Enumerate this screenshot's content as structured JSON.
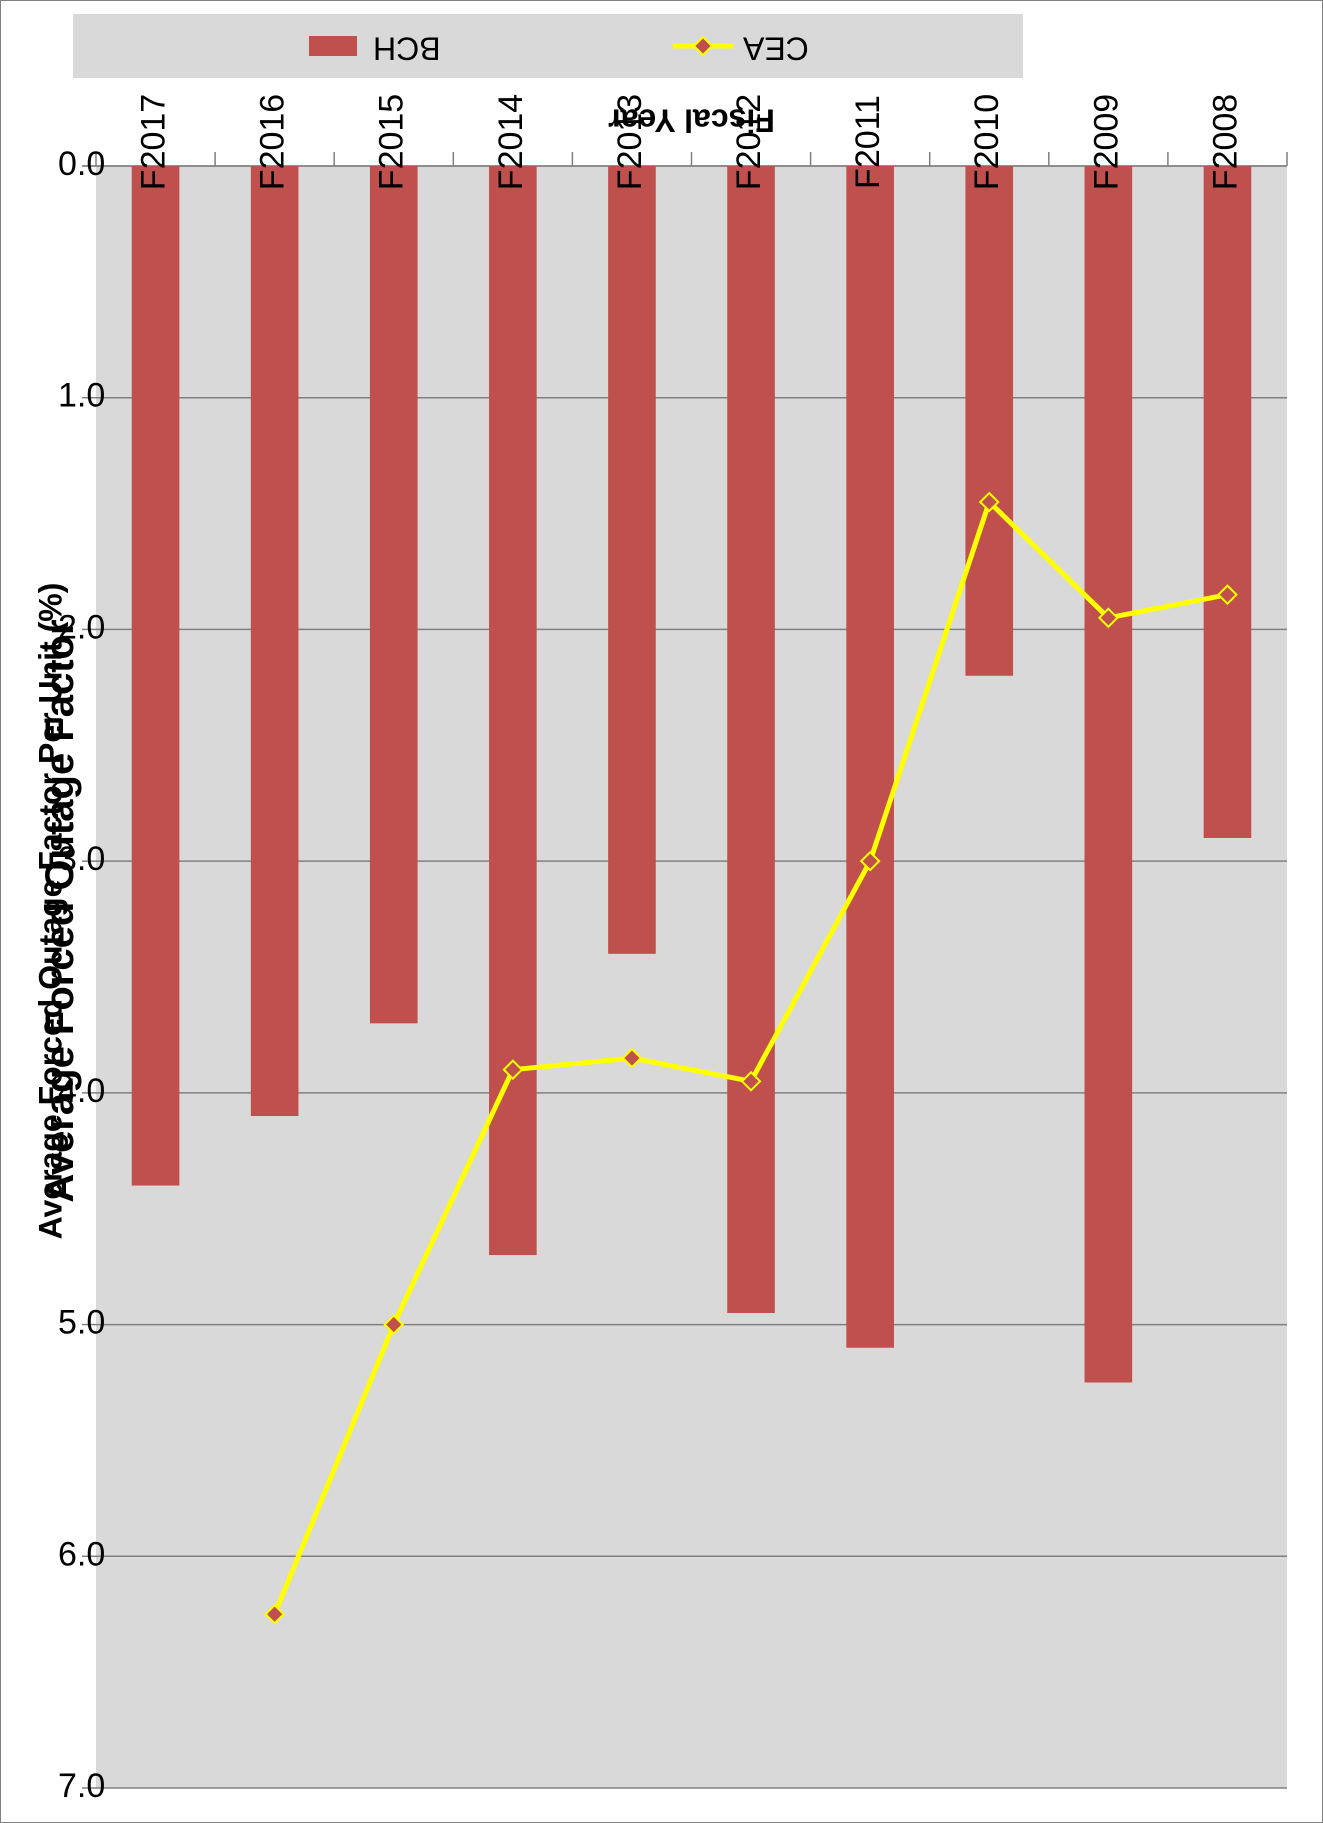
{
  "chart_data": {
    "type": "bar",
    "orientation": "rotated-90-clockwise",
    "title": "Average Forced Outage Factor",
    "xlabel": "Fiscal Year",
    "ylabel": "Average Forced Outage Factor Per Unit (%)",
    "categories": [
      "F2008",
      "F2009",
      "F2010",
      "F2011",
      "F2012",
      "F2013",
      "F2014",
      "F2015",
      "F2016",
      "F2017"
    ],
    "ylim": [
      0,
      7
    ],
    "yticks": [
      "0.0",
      "1.0",
      "2.0",
      "3.0",
      "4.0",
      "5.0",
      "6.0",
      "7.0"
    ],
    "grid": true,
    "legend_position": "bottom",
    "series": [
      {
        "name": "BCH",
        "kind": "bar",
        "color": "#C0504D",
        "values": [
          2.9,
          5.25,
          2.2,
          5.1,
          4.95,
          3.4,
          4.7,
          3.7,
          4.1,
          4.4
        ]
      },
      {
        "name": "CEA",
        "kind": "line",
        "color": "#FFFF00",
        "marker_color": "#C0504D",
        "values": [
          1.85,
          1.95,
          1.45,
          3.0,
          3.95,
          3.85,
          3.9,
          5.0,
          6.25,
          null
        ]
      }
    ]
  },
  "colors": {
    "plot_background": "#D9D9D9",
    "gridline": "#808080",
    "bar": "#C0504D",
    "line": "#FFFF00"
  }
}
